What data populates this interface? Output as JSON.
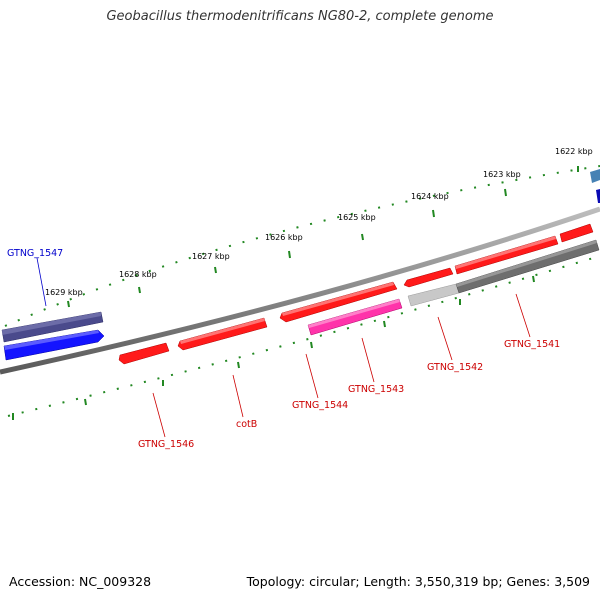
{
  "title": "Geobacillus thermodenitrificans NG80-2, complete genome",
  "footer": {
    "accession": "Accession: NC_009328",
    "summary": "Topology: circular; Length: 3,550,319 bp; Genes: 3,509"
  },
  "colors": {
    "backbone": "#8a8a8a",
    "tick_dots": "#228822",
    "label_red": "#cc0000",
    "label_blue": "#0000cc",
    "gene_red": "#ff1a1a",
    "gene_magenta": "#ff33aa",
    "gene_blue": "#1414ff",
    "gene_navy": "#4a4a8c",
    "gene_gray": "#6e6e6e",
    "gene_lightgray": "#c8c8c8",
    "gene_steel": "#4682b4",
    "gene_darkblue": "#0a0ab4"
  },
  "scale_ticks": [
    {
      "label": "1622 kbp"
    },
    {
      "label": "1623 kbp"
    },
    {
      "label": "1624 kbp"
    },
    {
      "label": "1625 kbp"
    },
    {
      "label": "1626 kbp"
    },
    {
      "label": "1627 kbp"
    },
    {
      "label": "1628 kbp"
    },
    {
      "label": "1629 kbp"
    }
  ],
  "gene_labels": [
    {
      "name": "GTNG_1547",
      "strand": "outer"
    },
    {
      "name": "GTNG_1546",
      "strand": "inner"
    },
    {
      "name": "cotB",
      "strand": "inner"
    },
    {
      "name": "GTNG_1544",
      "strand": "inner"
    },
    {
      "name": "GTNG_1543",
      "strand": "inner"
    },
    {
      "name": "GTNG_1542",
      "strand": "inner"
    },
    {
      "name": "GTNG_1541",
      "strand": "inner"
    }
  ]
}
